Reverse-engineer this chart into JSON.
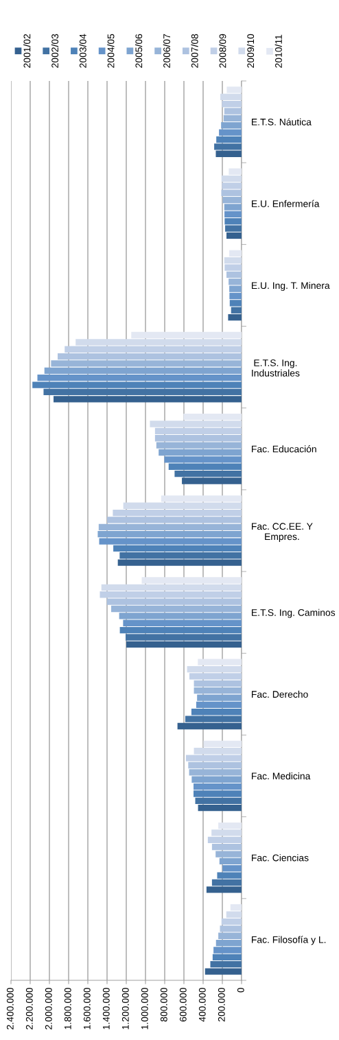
{
  "chart_data": {
    "type": "bar",
    "orientation": "horizontal",
    "categories": [
      "E.T.S. Náutica",
      "E.U. Enfermería",
      "E.U. Ing. T. Minera",
      "E.T.S. Ing.\nIndustriales",
      "Fac. Educación",
      "Fac. CC.EE. Y\nEmpres.",
      "E.T.S. Ing. Caminos",
      "Fac. Derecho",
      "Fac. Medicina",
      "Fac. Ciencias",
      "Fac. Filosofía y L."
    ],
    "series": [
      {
        "name": "2001/02",
        "color": "#35618f",
        "values": [
          268000,
          157000,
          140000,
          1957000,
          621000,
          1288000,
          1200000,
          667000,
          453000,
          365000,
          380000
        ]
      },
      {
        "name": "2002/03",
        "color": "#4272a3",
        "values": [
          285000,
          171000,
          109000,
          2061000,
          697000,
          1269000,
          1207000,
          586000,
          482000,
          308000,
          325000
        ]
      },
      {
        "name": "2003/04",
        "color": "#4e82b8",
        "values": [
          263000,
          176000,
          123000,
          2177000,
          759000,
          1335000,
          1267000,
          522000,
          500000,
          254000,
          301000
        ]
      },
      {
        "name": "2004/05",
        "color": "#6593c9",
        "values": [
          235000,
          178000,
          126000,
          2125000,
          804000,
          1482000,
          1233000,
          472000,
          500000,
          199000,
          292000
        ]
      },
      {
        "name": "2005/06",
        "color": "#7ea4d0",
        "values": [
          213000,
          180000,
          128000,
          2052000,
          863000,
          1497000,
          1274000,
          463000,
          519000,
          230000,
          266000
        ]
      },
      {
        "name": "2006/07",
        "color": "#97b4d8",
        "values": [
          187000,
          197000,
          135000,
          1983000,
          887000,
          1487000,
          1357000,
          496000,
          546000,
          270000,
          242000
        ]
      },
      {
        "name": "2007/08",
        "color": "#adc2e0",
        "values": [
          180000,
          211000,
          157000,
          1914000,
          901000,
          1399000,
          1402000,
          496000,
          555000,
          308000,
          225000
        ]
      },
      {
        "name": "2008/09",
        "color": "#c0cfe7",
        "values": [
          204000,
          204000,
          176000,
          1841000,
          901000,
          1340000,
          1475000,
          543000,
          579000,
          351000,
          209000
        ]
      },
      {
        "name": "2009/10",
        "color": "#d1dbec",
        "values": [
          221000,
          209000,
          180000,
          1727000,
          954000,
          1231000,
          1459000,
          567000,
          496000,
          313000,
          159000
        ]
      },
      {
        "name": "2010/11",
        "color": "#e3e8f3",
        "values": [
          154000,
          133000,
          128000,
          1148000,
          605000,
          837000,
          1039000,
          455000,
          396000,
          242000,
          116000
        ]
      }
    ],
    "xlim": [
      2400000,
      0
    ],
    "xticks": [
      {
        "value": 0,
        "label": "0"
      },
      {
        "value": 200000,
        "label": "200.000"
      },
      {
        "value": 400000,
        "label": "400.000"
      },
      {
        "value": 600000,
        "label": "600.000"
      },
      {
        "value": 800000,
        "label": "800.000"
      },
      {
        "value": 1000000,
        "label": "1.000.000"
      },
      {
        "value": 1200000,
        "label": "1.200.000"
      },
      {
        "value": 1400000,
        "label": "1.400.000"
      },
      {
        "value": 1600000,
        "label": "1.600.000"
      },
      {
        "value": 1800000,
        "label": "1.800.000"
      },
      {
        "value": 2000000,
        "label": "2.000.000"
      },
      {
        "value": 2200000,
        "label": "2.200.000"
      },
      {
        "value": 2400000,
        "label": "2.400.000"
      }
    ],
    "grid": "x",
    "legend": "top"
  }
}
